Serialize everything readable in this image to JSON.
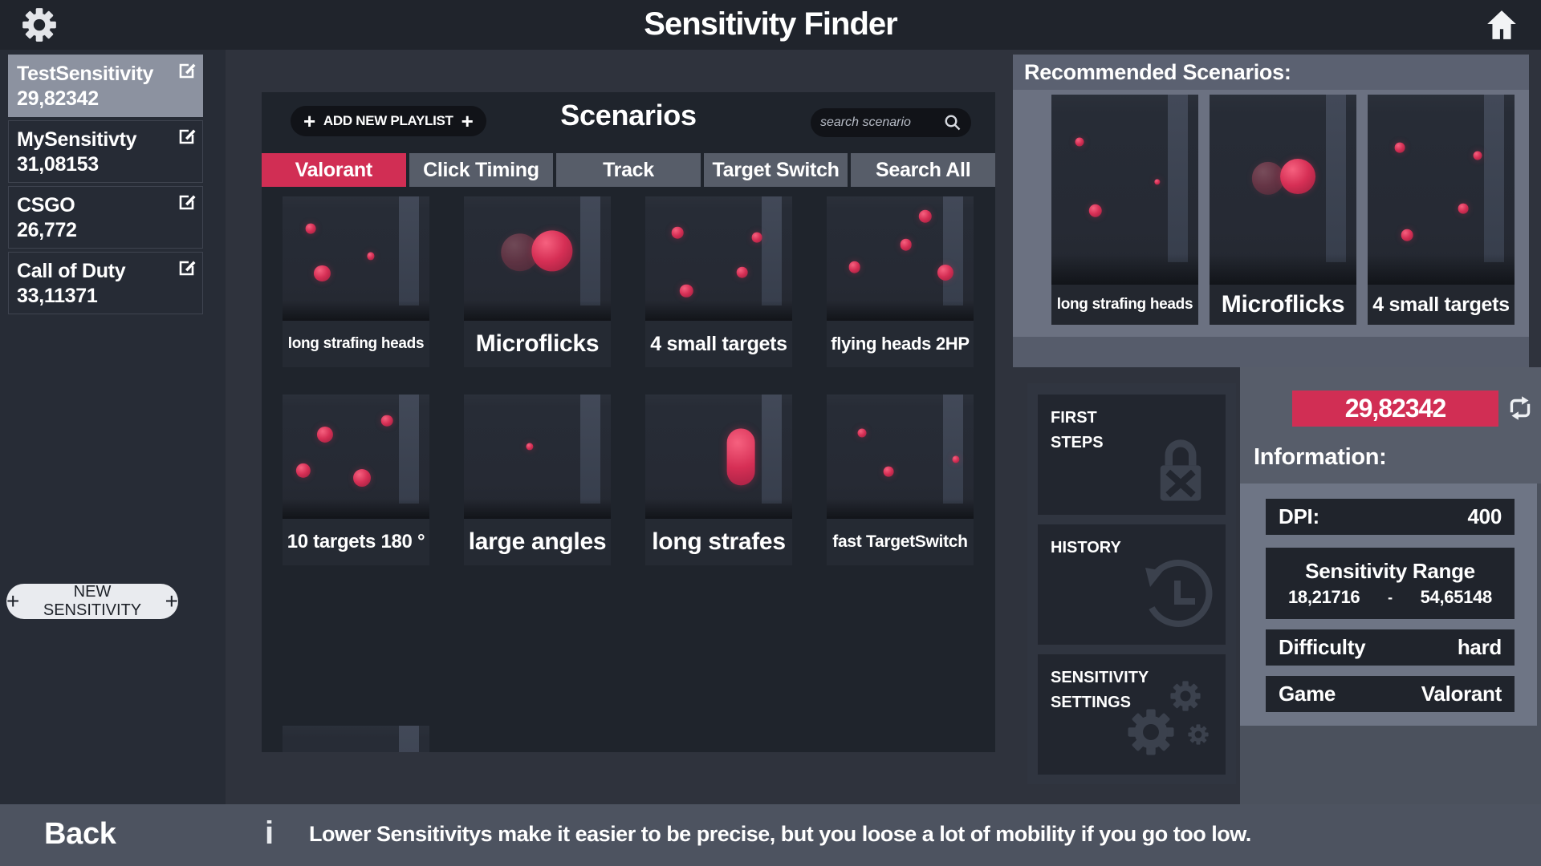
{
  "app": {
    "title": "Sensitivity Finder"
  },
  "sidebar": {
    "items": [
      {
        "name": "TestSensitivity",
        "value": "29,82342",
        "selected": true
      },
      {
        "name": "MySensitivty",
        "value": "31,08153",
        "selected": false
      },
      {
        "name": "CSGO",
        "value": "26,772",
        "selected": false
      },
      {
        "name": "Call of Duty",
        "value": "33,11371",
        "selected": false
      }
    ],
    "new_button_label": "NEW SENSITIVITY"
  },
  "scenarios": {
    "panel_title": "Scenarios",
    "add_playlist_label": "ADD NEW PLAYLIST",
    "search_placeholder": "search scenario",
    "tabs": [
      {
        "label": "Valorant",
        "active": true
      },
      {
        "label": "Click Timing",
        "active": false
      },
      {
        "label": "Track",
        "active": false
      },
      {
        "label": "Target Switch",
        "active": false
      },
      {
        "label": "Search All",
        "active": false
      }
    ],
    "cards": [
      {
        "label": "long strafing heads",
        "balls": [
          [
            19,
            26,
            7,
            1
          ],
          [
            60,
            48,
            5,
            1
          ],
          [
            27,
            62,
            11,
            1
          ]
        ]
      },
      {
        "label": "Microflicks",
        "balls": [
          [
            38,
            45,
            26,
            0.45
          ],
          [
            60,
            44,
            28,
            1
          ]
        ]
      },
      {
        "label": "4 small targets",
        "balls": [
          [
            22,
            29,
            8,
            1
          ],
          [
            76,
            33,
            7,
            1
          ],
          [
            66,
            61,
            8,
            1
          ],
          [
            28,
            76,
            9,
            1
          ]
        ]
      },
      {
        "label": "flying heads 2HP",
        "balls": [
          [
            67,
            16,
            9,
            1
          ],
          [
            54,
            39,
            8,
            1
          ],
          [
            19,
            57,
            8,
            1
          ],
          [
            81,
            61,
            11,
            1
          ]
        ]
      },
      {
        "label": "10 targets 180 °",
        "balls": [
          [
            71,
            21,
            8,
            1
          ],
          [
            29,
            32,
            11,
            1
          ],
          [
            14,
            61,
            10,
            1
          ],
          [
            54,
            67,
            12,
            1
          ]
        ]
      },
      {
        "label": "large angles",
        "balls": [
          [
            45,
            42,
            5,
            1
          ]
        ]
      },
      {
        "label": "long strafes",
        "balls": [],
        "capsule": [
          65,
          50,
          19,
          46
        ]
      },
      {
        "label": "fast TargetSwitch",
        "balls": [
          [
            24,
            31,
            6,
            1
          ],
          [
            88,
            52,
            5,
            1
          ],
          [
            42,
            62,
            7,
            1
          ]
        ]
      }
    ]
  },
  "recommended": {
    "title": "Recommended Scenarios:",
    "cards": [
      {
        "label": "long strafing heads",
        "balls": [
          [
            19,
            25,
            6,
            1
          ],
          [
            72,
            46,
            4,
            1
          ],
          [
            30,
            61,
            9,
            1
          ]
        ]
      },
      {
        "label": "Microflicks",
        "balls": [
          [
            40,
            44,
            22,
            0.5
          ],
          [
            60,
            43,
            24,
            1
          ]
        ]
      },
      {
        "label": "4 small targets",
        "balls": [
          [
            22,
            28,
            7,
            1
          ],
          [
            75,
            32,
            6,
            1
          ],
          [
            65,
            60,
            7,
            1
          ],
          [
            27,
            74,
            8,
            1
          ]
        ]
      }
    ]
  },
  "side_menu": {
    "first_steps": "FIRST STEPS",
    "history": "HISTORY",
    "settings": "SENSITIVITY SETTINGS"
  },
  "current_sensitivity": {
    "value": "29,82342"
  },
  "information": {
    "title": "Information:",
    "dpi_label": "DPI:",
    "dpi_value": "400",
    "range_title": "Sensitivity Range",
    "range_min": "18,21716",
    "range_separator": "-",
    "range_max": "54,65148",
    "difficulty_label": "Difficulty",
    "difficulty_value": "hard",
    "game_label": "Game",
    "game_value": "Valorant"
  },
  "footer": {
    "back_label": "Back",
    "info_icon": "i",
    "info_text": "Lower Sensitivitys make it easier to be precise, but you loose a lot of mobility if you go too low."
  },
  "colors": {
    "accent": "#d12e54",
    "tab_inactive": "#575d69",
    "panel_gray": "#6b7181",
    "dark": "#20242c"
  }
}
